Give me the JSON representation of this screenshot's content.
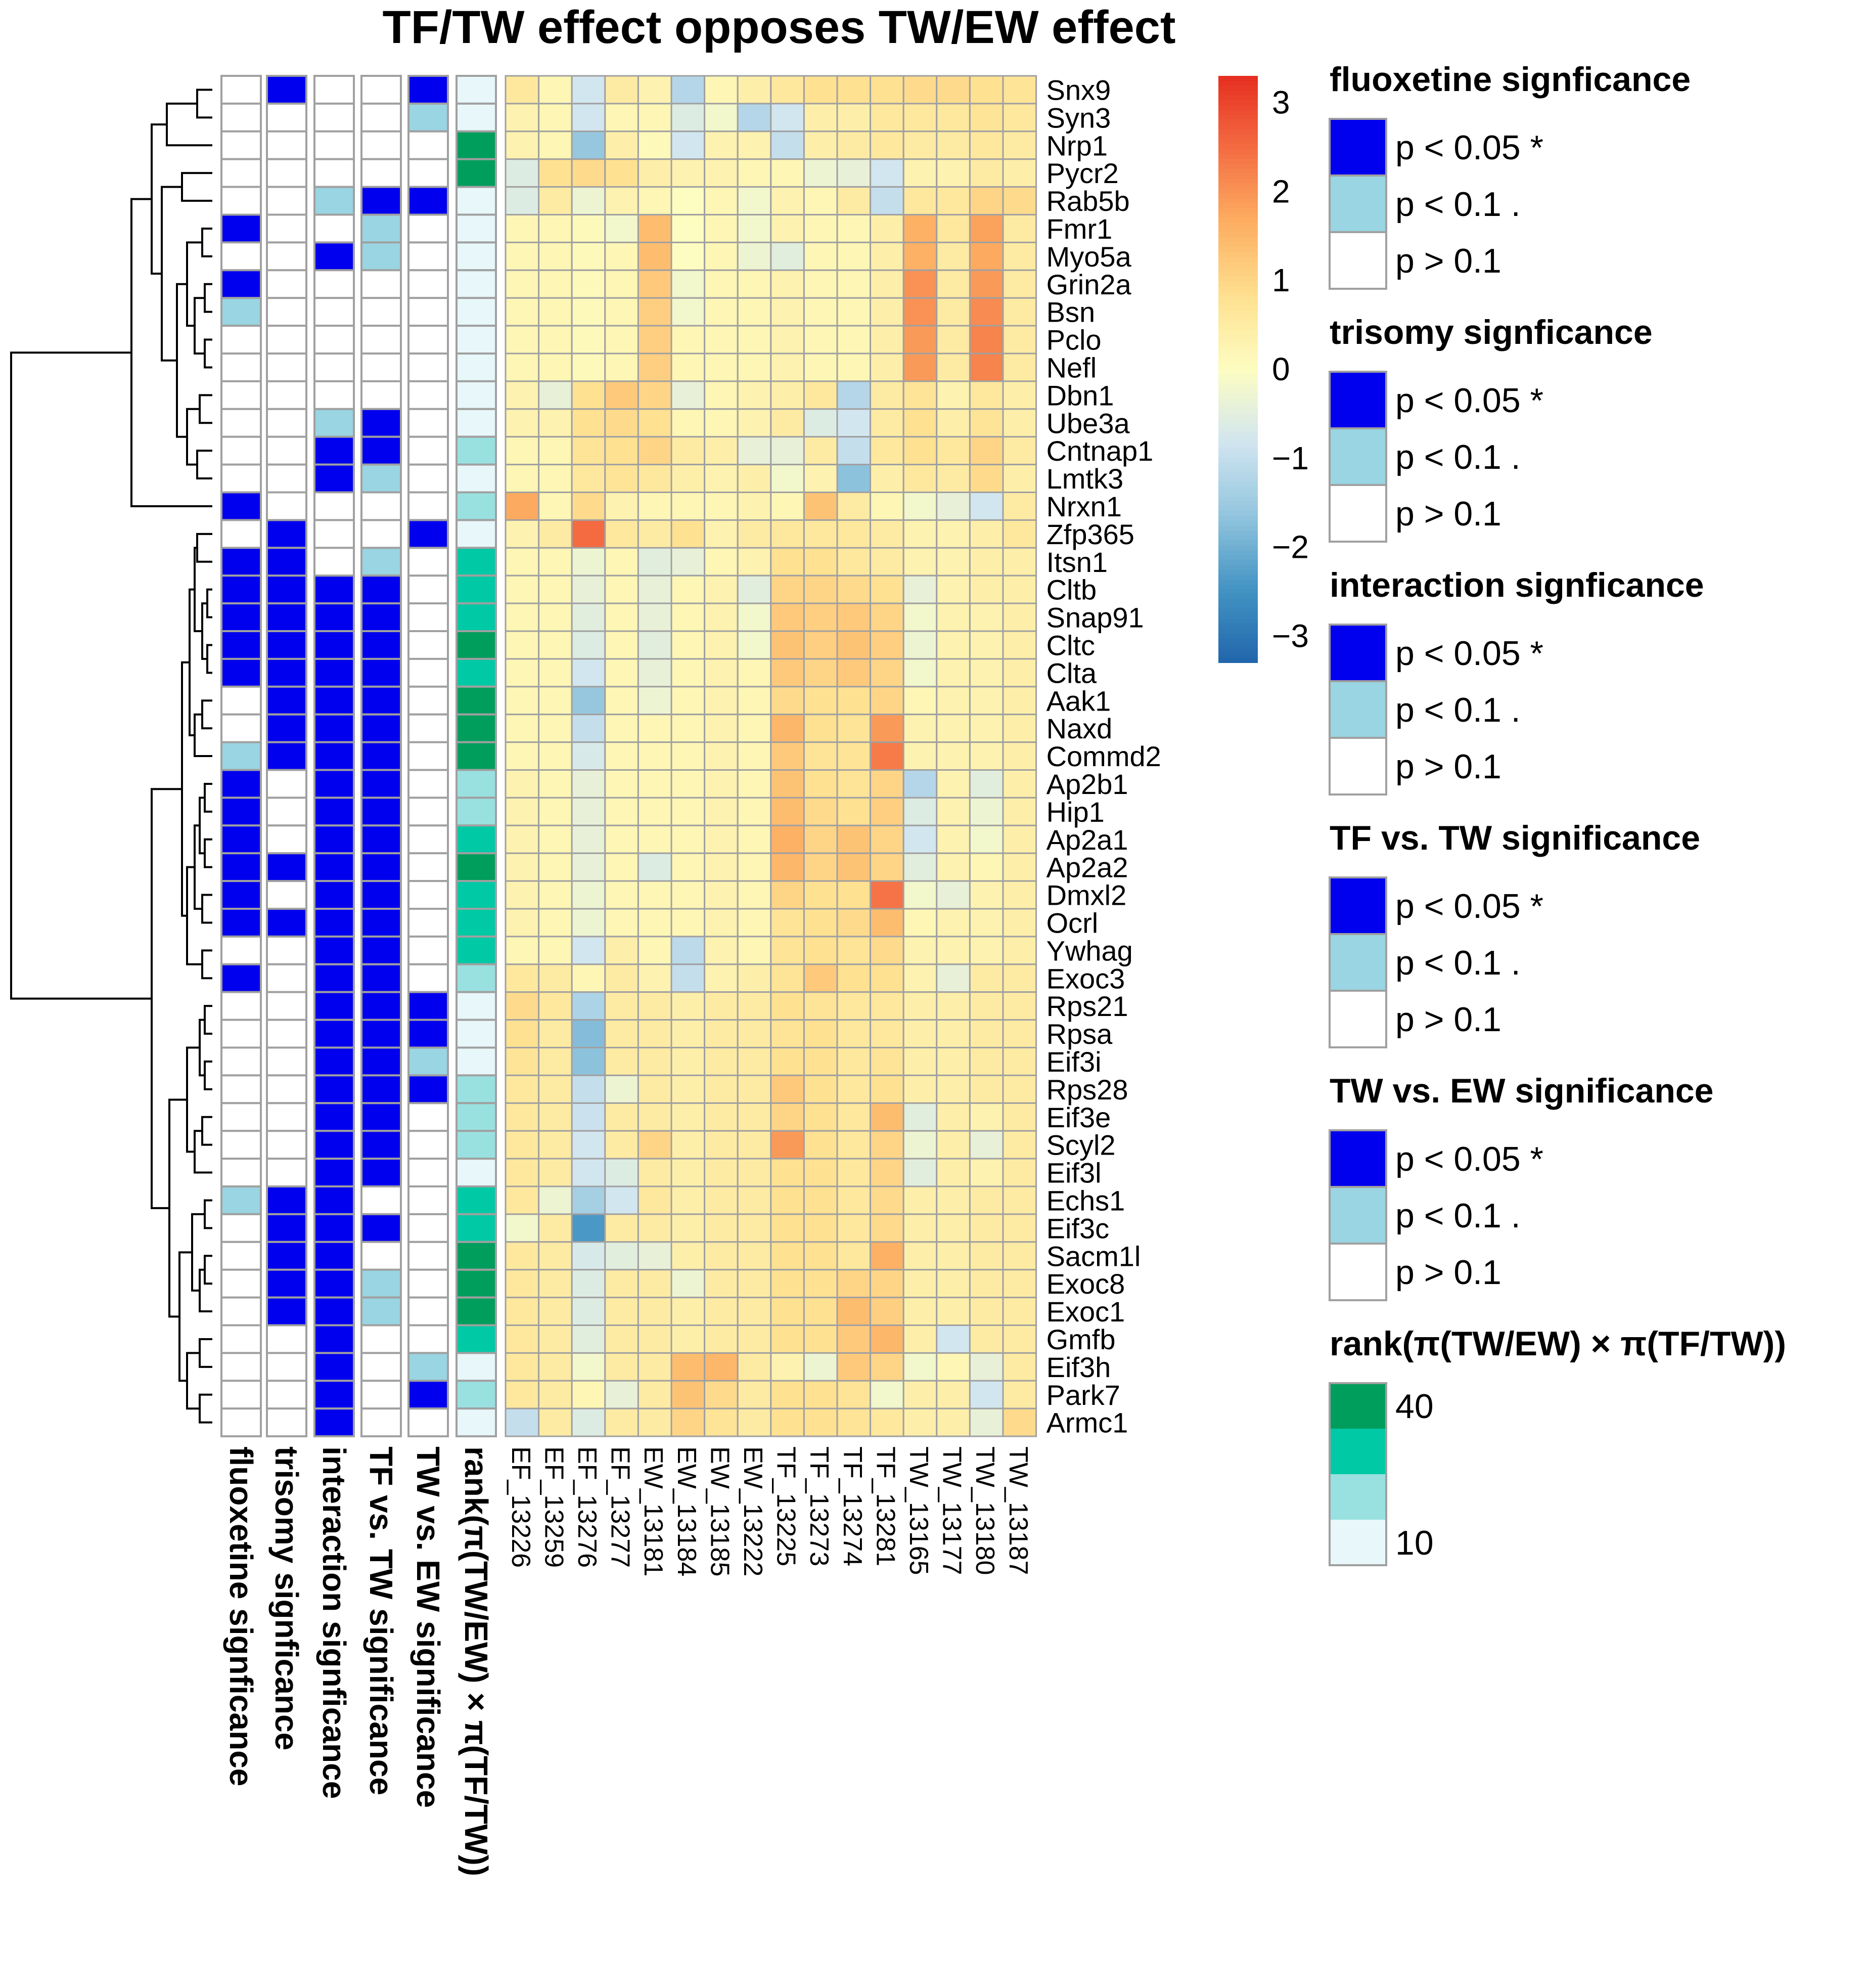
{
  "chart_data": {
    "type": "heatmap",
    "title": "TF/TW effect opposes TW/EW effect",
    "rows": [
      "Snx9",
      "Syn3",
      "Nrp1",
      "Pycr2",
      "Rab5b",
      "Fmr1",
      "Myo5a",
      "Grin2a",
      "Bsn",
      "Pclo",
      "Nefl",
      "Dbn1",
      "Ube3a",
      "Cntnap1",
      "Lmtk3",
      "Nrxn1",
      "Zfp365",
      "Itsn1",
      "Cltb",
      "Snap91",
      "Cltc",
      "Clta",
      "Aak1",
      "Naxd",
      "Commd2",
      "Ap2b1",
      "Hip1",
      "Ap2a1",
      "Ap2a2",
      "Dmxl2",
      "Ocrl",
      "Ywhag",
      "Exoc3",
      "Rps21",
      "Rpsa",
      "Eif3i",
      "Rps28",
      "Eif3e",
      "Scyl2",
      "Eif3l",
      "Echs1",
      "Eif3c",
      "Sacm1l",
      "Exoc8",
      "Exoc1",
      "Gmfb",
      "Eif3h",
      "Park7",
      "Armc1"
    ],
    "columns": [
      "EF_13226",
      "EF_13259",
      "EF_13276",
      "EF_13277",
      "EW_13181",
      "EW_13184",
      "EW_13185",
      "EW_13222",
      "TF_13225",
      "TF_13273",
      "TF_13274",
      "TF_13281",
      "TW_13165",
      "TW_13177",
      "TW_13180",
      "TW_13187"
    ],
    "values": [
      [
        0.6,
        0.2,
        -0.8,
        0.5,
        0.3,
        -1.2,
        0.2,
        0.4,
        0.6,
        0.8,
        0.8,
        0.8,
        0.9,
        0.9,
        0.8,
        0.7
      ],
      [
        0.3,
        0.2,
        -0.8,
        0.2,
        0.2,
        -0.6,
        -0.2,
        -1.2,
        -0.8,
        0.4,
        0.4,
        0.6,
        0.6,
        0.6,
        0.7,
        0.6
      ],
      [
        0.3,
        0.2,
        -1.6,
        0.4,
        0.1,
        -0.8,
        0.3,
        0.3,
        -1.0,
        0.4,
        0.5,
        0.6,
        0.5,
        0.5,
        0.6,
        0.5
      ],
      [
        -0.6,
        0.8,
        0.9,
        0.8,
        0.4,
        0.3,
        0.3,
        0.2,
        0.2,
        -0.3,
        -0.4,
        -0.8,
        0.3,
        0.3,
        0.5,
        0.4
      ],
      [
        -0.6,
        0.5,
        -0.3,
        0.3,
        0.2,
        0.0,
        0.2,
        -0.2,
        0.3,
        0.2,
        0.5,
        -1.0,
        0.6,
        0.6,
        1.0,
        0.9
      ],
      [
        0.2,
        0.2,
        0.1,
        -0.2,
        1.4,
        0.0,
        0.2,
        -0.2,
        0.3,
        0.2,
        0.2,
        0.4,
        1.6,
        0.6,
        1.8,
        0.5
      ],
      [
        0.2,
        0.2,
        0.1,
        0.2,
        1.4,
        0.0,
        0.2,
        -0.3,
        -0.5,
        0.2,
        0.2,
        0.4,
        1.6,
        0.5,
        1.7,
        0.5
      ],
      [
        0.2,
        0.2,
        0.1,
        0.2,
        1.2,
        -0.2,
        0.2,
        0.2,
        0.3,
        0.2,
        0.2,
        0.4,
        2.0,
        0.5,
        1.9,
        0.5
      ],
      [
        0.2,
        0.2,
        0.1,
        0.2,
        1.1,
        -0.2,
        0.2,
        0.2,
        0.3,
        0.2,
        0.2,
        0.4,
        2.0,
        0.5,
        2.1,
        0.5
      ],
      [
        0.2,
        0.2,
        0.1,
        0.2,
        1.1,
        0.2,
        0.2,
        0.2,
        0.3,
        0.2,
        0.2,
        0.4,
        1.9,
        0.5,
        2.2,
        0.5
      ],
      [
        0.2,
        0.2,
        0.1,
        0.2,
        1.1,
        0.2,
        0.2,
        0.2,
        0.3,
        0.2,
        0.2,
        0.4,
        1.9,
        0.5,
        2.2,
        0.5
      ],
      [
        0.3,
        -0.4,
        0.8,
        1.2,
        1.0,
        -0.4,
        0.2,
        0.3,
        0.4,
        0.6,
        -1.2,
        0.5,
        0.7,
        0.3,
        0.6,
        0.4
      ],
      [
        0.3,
        0.3,
        0.8,
        0.9,
        0.8,
        0.2,
        0.2,
        0.3,
        0.5,
        -0.6,
        -0.8,
        0.5,
        0.8,
        0.4,
        0.7,
        0.4
      ],
      [
        0.2,
        0.2,
        0.7,
        0.8,
        1.0,
        0.5,
        0.4,
        -0.4,
        -0.4,
        0.5,
        -1.0,
        0.6,
        0.8,
        0.6,
        1.0,
        0.5
      ],
      [
        0.2,
        0.2,
        0.6,
        0.7,
        0.6,
        0.4,
        0.3,
        0.4,
        -0.2,
        0.3,
        -1.7,
        0.4,
        0.6,
        0.5,
        0.9,
        0.4
      ],
      [
        1.7,
        0.2,
        0.9,
        0.3,
        0.2,
        0.2,
        0.2,
        0.3,
        0.2,
        1.3,
        0.5,
        0.2,
        -0.2,
        -0.4,
        -0.8,
        0.5
      ],
      [
        0.3,
        0.5,
        2.5,
        0.6,
        0.5,
        0.8,
        0.3,
        0.5,
        0.6,
        0.6,
        0.6,
        0.5,
        0.3,
        0.3,
        0.4,
        0.6
      ],
      [
        0.2,
        0.2,
        -0.3,
        0.2,
        -0.5,
        -0.4,
        0.2,
        0.3,
        0.8,
        0.8,
        0.6,
        0.5,
        0.3,
        0.3,
        0.4,
        0.4
      ],
      [
        0.2,
        0.2,
        -0.4,
        0.2,
        -0.4,
        0.2,
        0.3,
        -0.5,
        1.0,
        1.0,
        0.9,
        0.8,
        -0.4,
        0.3,
        0.4,
        0.4
      ],
      [
        0.2,
        0.2,
        -0.5,
        0.2,
        -0.4,
        0.2,
        0.3,
        -0.2,
        1.2,
        1.1,
        1.2,
        1.0,
        -0.2,
        0.3,
        0.3,
        0.4
      ],
      [
        0.2,
        0.2,
        -0.6,
        0.2,
        -0.5,
        0.2,
        0.3,
        -0.2,
        1.3,
        1.1,
        1.3,
        1.1,
        -0.3,
        0.3,
        0.3,
        0.4
      ],
      [
        0.2,
        0.2,
        -0.8,
        0.2,
        -0.4,
        0.2,
        0.3,
        0.2,
        1.2,
        1.0,
        1.2,
        1.0,
        -0.2,
        0.3,
        0.3,
        0.4
      ],
      [
        0.2,
        0.2,
        -1.6,
        0.2,
        -0.3,
        0.2,
        0.3,
        0.2,
        0.9,
        0.8,
        0.8,
        1.0,
        0.2,
        0.3,
        0.3,
        0.4
      ],
      [
        0.2,
        0.2,
        -1.0,
        0.2,
        0.2,
        0.2,
        0.3,
        0.2,
        1.5,
        0.8,
        0.7,
        1.9,
        0.3,
        0.3,
        0.3,
        0.4
      ],
      [
        0.2,
        0.2,
        -0.7,
        0.2,
        0.2,
        0.2,
        0.3,
        0.2,
        1.2,
        0.7,
        0.7,
        2.3,
        0.3,
        0.3,
        0.3,
        0.4
      ],
      [
        0.3,
        0.2,
        -0.4,
        0.2,
        0.2,
        0.2,
        0.3,
        0.2,
        1.3,
        0.8,
        0.7,
        1.0,
        -1.2,
        0.3,
        -0.5,
        0.4
      ],
      [
        0.3,
        0.2,
        -0.4,
        0.2,
        0.2,
        0.2,
        0.3,
        0.2,
        1.4,
        0.9,
        0.8,
        1.1,
        -0.6,
        0.3,
        -0.3,
        0.4
      ],
      [
        0.3,
        0.2,
        -0.4,
        0.2,
        0.2,
        0.2,
        0.3,
        0.2,
        1.6,
        1.0,
        1.3,
        1.0,
        -0.8,
        0.3,
        -0.2,
        0.4
      ],
      [
        0.3,
        0.2,
        -0.4,
        0.2,
        -0.6,
        0.2,
        0.3,
        0.2,
        1.5,
        1.0,
        1.3,
        1.0,
        -0.5,
        0.3,
        0.2,
        0.4
      ],
      [
        0.3,
        0.2,
        -0.3,
        0.2,
        0.2,
        0.2,
        0.3,
        0.2,
        1.0,
        0.8,
        0.8,
        2.4,
        -0.2,
        -0.4,
        0.3,
        0.4
      ],
      [
        0.3,
        0.2,
        -0.3,
        0.2,
        0.2,
        0.2,
        0.3,
        0.2,
        0.7,
        0.8,
        0.9,
        1.4,
        0.2,
        0.3,
        0.3,
        0.4
      ],
      [
        0.2,
        0.2,
        -0.8,
        0.4,
        0.2,
        -1.1,
        0.3,
        0.2,
        0.7,
        0.8,
        0.7,
        0.9,
        0.3,
        0.3,
        0.3,
        0.4
      ],
      [
        0.6,
        0.5,
        0.2,
        0.5,
        0.3,
        -1.0,
        0.3,
        0.4,
        0.7,
        1.2,
        0.8,
        0.8,
        0.3,
        -0.4,
        0.5,
        0.5
      ],
      [
        0.9,
        0.6,
        -1.3,
        0.5,
        0.5,
        0.4,
        0.5,
        0.5,
        0.8,
        0.7,
        0.6,
        0.6,
        0.4,
        0.4,
        0.5,
        0.5
      ],
      [
        0.8,
        0.5,
        -1.8,
        0.5,
        0.5,
        0.4,
        0.5,
        0.5,
        0.7,
        0.8,
        0.6,
        0.6,
        0.4,
        0.4,
        0.5,
        0.5
      ],
      [
        0.7,
        0.5,
        -1.7,
        0.5,
        0.5,
        0.4,
        0.5,
        0.5,
        0.8,
        0.8,
        0.6,
        0.7,
        0.4,
        0.4,
        0.5,
        0.5
      ],
      [
        0.6,
        0.5,
        -1.0,
        -0.3,
        0.5,
        0.4,
        0.5,
        0.5,
        1.2,
        0.8,
        0.6,
        0.8,
        0.4,
        0.4,
        0.5,
        0.5
      ],
      [
        0.6,
        0.5,
        -0.9,
        0.5,
        0.5,
        0.4,
        0.5,
        0.5,
        1.0,
        0.8,
        0.6,
        1.4,
        -0.5,
        0.4,
        0.3,
        0.5
      ],
      [
        0.6,
        0.5,
        -0.8,
        0.5,
        1.0,
        0.4,
        0.5,
        0.5,
        1.9,
        0.8,
        0.6,
        1.0,
        -0.3,
        0.4,
        -0.4,
        0.5
      ],
      [
        0.6,
        0.5,
        -0.8,
        -0.6,
        0.5,
        0.4,
        0.5,
        0.5,
        0.8,
        0.8,
        0.6,
        1.0,
        -0.5,
        0.4,
        0.3,
        0.5
      ],
      [
        0.6,
        -0.3,
        -1.4,
        -0.8,
        0.6,
        0.4,
        0.5,
        0.5,
        0.8,
        0.8,
        0.6,
        0.9,
        0.4,
        0.4,
        0.5,
        0.5
      ],
      [
        -0.2,
        0.5,
        -2.4,
        0.5,
        0.5,
        0.4,
        0.5,
        0.5,
        0.8,
        0.8,
        0.6,
        0.9,
        0.4,
        0.4,
        0.5,
        0.5
      ],
      [
        0.6,
        0.5,
        -0.7,
        -0.5,
        -0.4,
        0.4,
        0.5,
        0.5,
        0.8,
        0.8,
        0.6,
        1.6,
        0.4,
        0.4,
        0.5,
        0.5
      ],
      [
        0.6,
        0.5,
        -0.6,
        0.5,
        0.5,
        -0.3,
        0.5,
        0.5,
        0.8,
        0.8,
        1.0,
        1.0,
        0.4,
        0.4,
        0.5,
        0.5
      ],
      [
        0.6,
        0.5,
        -0.6,
        0.5,
        0.5,
        0.4,
        0.5,
        0.5,
        0.8,
        0.8,
        1.4,
        1.1,
        0.4,
        0.4,
        0.5,
        0.5
      ],
      [
        0.6,
        0.5,
        -0.5,
        0.5,
        0.5,
        0.4,
        0.5,
        0.5,
        0.8,
        0.8,
        1.2,
        1.5,
        0.4,
        -0.8,
        0.5,
        0.5
      ],
      [
        0.6,
        0.5,
        -0.2,
        0.5,
        0.5,
        1.4,
        1.5,
        0.5,
        0.3,
        -0.3,
        1.2,
        1.0,
        -0.2,
        0.2,
        -0.4,
        0.5
      ],
      [
        0.6,
        0.5,
        0.2,
        -0.4,
        0.5,
        1.3,
        0.9,
        0.5,
        0.8,
        0.8,
        0.7,
        -0.2,
        0.4,
        0.4,
        -0.8,
        0.5
      ],
      [
        -1.0,
        0.5,
        -0.6,
        0.5,
        0.5,
        1.0,
        0.7,
        0.5,
        0.8,
        0.8,
        0.7,
        0.6,
        0.4,
        0.4,
        -0.4,
        0.9
      ]
    ],
    "annotations": {
      "labels": [
        "fluoxetine signficance",
        "trisomy signficance",
        "interaction signficance",
        "TF vs. TW significance",
        "TW vs. EW significance",
        "rank(π(TW/EW) × π(TF/TW))"
      ],
      "significance": [
        [
          0,
          0,
          0,
          0,
          0,
          2,
          0,
          2,
          1,
          0,
          0,
          0,
          0,
          0,
          0,
          2,
          0,
          2,
          2,
          2,
          2,
          2,
          0,
          0,
          1,
          2,
          2,
          2,
          2,
          2,
          2,
          0,
          2,
          0,
          0,
          0,
          0,
          0,
          0,
          0,
          1,
          0,
          0,
          0,
          0,
          0,
          0,
          0,
          0
        ],
        [
          2,
          0,
          0,
          0,
          0,
          0,
          0,
          0,
          0,
          0,
          0,
          0,
          0,
          0,
          0,
          0,
          2,
          2,
          2,
          2,
          2,
          2,
          2,
          2,
          2,
          0,
          0,
          0,
          2,
          0,
          2,
          0,
          0,
          0,
          0,
          0,
          0,
          0,
          0,
          0,
          2,
          2,
          2,
          2,
          2,
          0,
          0,
          0,
          0
        ],
        [
          0,
          0,
          0,
          0,
          1,
          0,
          2,
          0,
          0,
          0,
          0,
          0,
          1,
          2,
          2,
          0,
          0,
          0,
          2,
          2,
          2,
          2,
          2,
          2,
          2,
          2,
          2,
          2,
          2,
          2,
          2,
          2,
          2,
          2,
          2,
          2,
          2,
          2,
          2,
          2,
          2,
          2,
          2,
          2,
          2,
          2,
          2,
          2,
          2
        ],
        [
          0,
          0,
          0,
          0,
          2,
          1,
          1,
          0,
          0,
          0,
          0,
          0,
          2,
          2,
          1,
          0,
          0,
          1,
          2,
          2,
          2,
          2,
          2,
          2,
          2,
          2,
          2,
          2,
          2,
          2,
          2,
          2,
          2,
          2,
          2,
          2,
          2,
          2,
          2,
          2,
          0,
          2,
          0,
          1,
          1,
          0,
          0,
          0,
          0
        ],
        [
          2,
          1,
          0,
          0,
          2,
          0,
          0,
          0,
          0,
          0,
          0,
          0,
          0,
          0,
          0,
          0,
          2,
          0,
          0,
          0,
          0,
          0,
          0,
          0,
          0,
          0,
          0,
          0,
          0,
          0,
          0,
          0,
          0,
          2,
          2,
          1,
          2,
          0,
          0,
          0,
          0,
          0,
          0,
          0,
          0,
          0,
          1,
          2,
          0
        ]
      ],
      "rank": [
        8,
        5,
        44,
        43,
        13,
        12,
        12,
        10,
        10,
        9,
        9,
        12,
        14,
        27,
        16,
        22,
        12,
        38,
        34,
        35,
        44,
        36,
        41,
        42,
        40,
        23,
        21,
        30,
        45,
        33,
        32,
        31,
        29,
        18,
        15,
        19,
        28,
        24,
        20,
        19,
        38,
        39,
        42,
        41,
        43,
        36,
        12,
        20,
        13
      ]
    },
    "legends": [
      {
        "title": "fluoxetine signficance",
        "items": [
          "p < 0.05 *",
          "p < 0.1 .",
          "p > 0.1"
        ]
      },
      {
        "title": "trisomy signficance",
        "items": [
          "p < 0.05 *",
          "p < 0.1 .",
          "p > 0.1"
        ]
      },
      {
        "title": "interaction signficance",
        "items": [
          "p < 0.05 *",
          "p < 0.1 .",
          "p > 0.1"
        ]
      },
      {
        "title": "TF vs. TW significance",
        "items": [
          "p < 0.05 *",
          "p < 0.1 .",
          "p > 0.1"
        ]
      },
      {
        "title": "TW vs. EW significance",
        "items": [
          "p < 0.05 *",
          "p < 0.1 .",
          "p > 0.1"
        ]
      },
      {
        "title": "rank(π(TW/EW) × π(TF/TW))",
        "items": [
          "40",
          "10"
        ]
      }
    ],
    "colorbar": {
      "range": [
        -3.3,
        3.3
      ],
      "ticks": [
        3,
        2,
        1,
        0,
        -1,
        -2,
        -3
      ],
      "tick_labels": [
        "3",
        "2",
        "1",
        "0",
        "−1",
        "−2",
        "−3"
      ]
    },
    "significance_colors": {
      "sig": "#0000ee",
      "trend": "#99d5e2",
      "none": "#ffffff"
    },
    "rank_colors": [
      "#e8f7f9",
      "#99e1e0",
      "#00c9a5",
      "#009e5d"
    ],
    "heat_colors": [
      "#2166ac",
      "#4393c3",
      "#92c5de",
      "#d1e5f0",
      "#fdfdc1",
      "#fee090",
      "#fdae61",
      "#f46d43",
      "#e62e20"
    ],
    "grid_color": "#a0a0a0"
  }
}
